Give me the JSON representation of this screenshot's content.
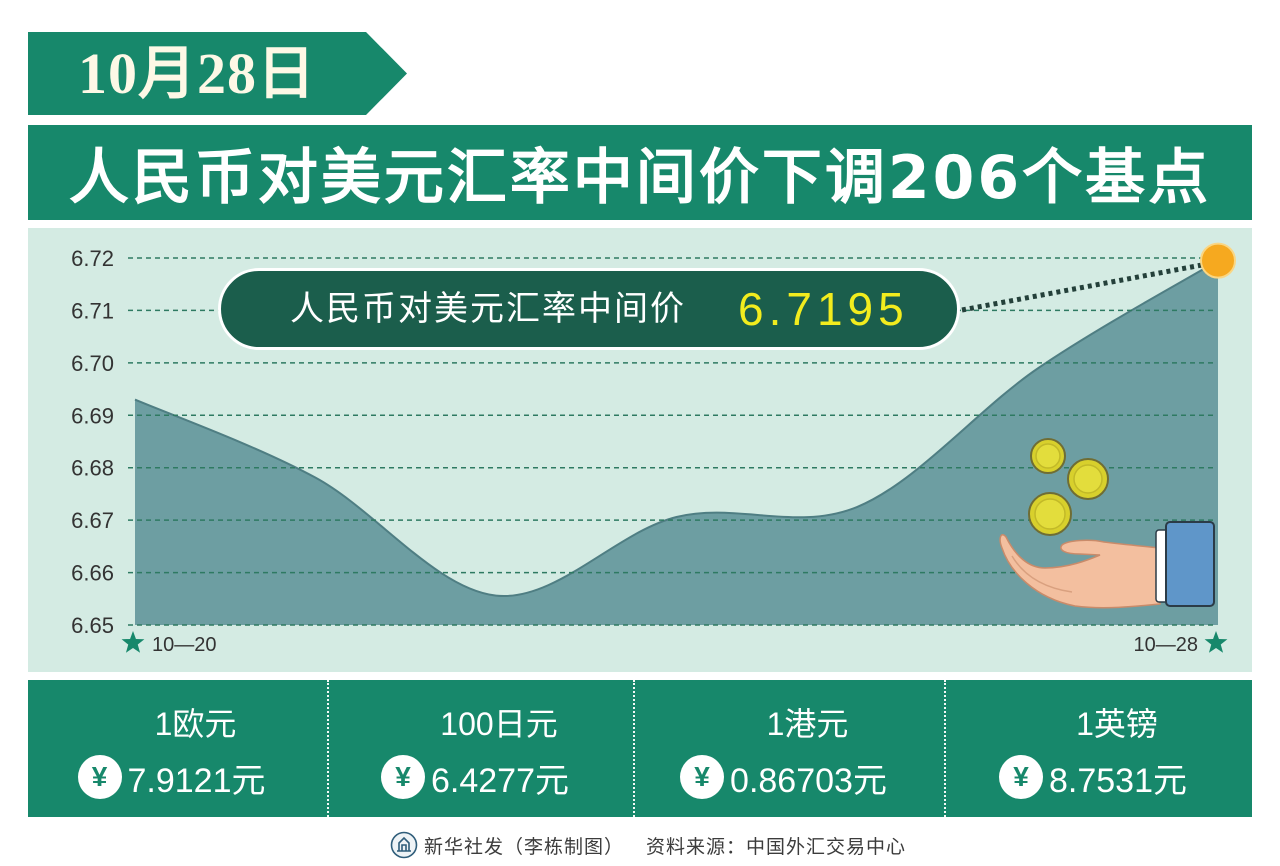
{
  "header": {
    "date": "10月28日",
    "title": "人民币对美元汇率中间价下调206个基点"
  },
  "colors": {
    "brand_green": "#17886b",
    "chart_background": "#d4ebe3",
    "area_fill": "#6d9ea2",
    "callout_background": "#1b5e4c",
    "callout_value": "#f2ec1e",
    "highlight_marker": "#f6a91f"
  },
  "chart_data": {
    "type": "area",
    "x_tick_labels": [
      "10—20",
      "10—28"
    ],
    "values": [
      6.693,
      6.6781,
      6.6556,
      6.6706,
      6.6725,
      6.6989,
      6.7195
    ],
    "ytick_labels": [
      "6.72",
      "6.71",
      "6.70",
      "6.69",
      "6.68",
      "6.67",
      "6.66",
      "6.65"
    ],
    "ylim": [
      6.65,
      6.72
    ],
    "grid": true,
    "callout": {
      "label": "人民币对美元汇率中间价",
      "value": "6.7195"
    }
  },
  "rates": [
    {
      "currency": "1欧元",
      "symbol": "¥",
      "value": "7.9121元"
    },
    {
      "currency": "100日元",
      "symbol": "¥",
      "value": "6.4277元"
    },
    {
      "currency": "1港元",
      "symbol": "¥",
      "value": "0.86703元"
    },
    {
      "currency": "1英镑",
      "symbol": "¥",
      "value": "8.7531元"
    }
  ],
  "footer": {
    "credit": "新华社发（李栋制图）",
    "source": "资料来源：中国外汇交易中心"
  },
  "icons": {
    "axis_endpoint": "star-icon",
    "currency": "yen-icon",
    "illustration": "hand-with-coins",
    "logo": "xinhua-logo"
  }
}
